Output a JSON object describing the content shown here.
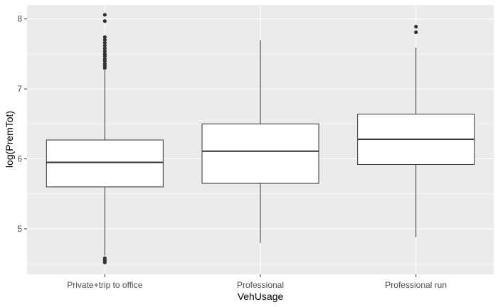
{
  "chart_data": {
    "type": "box",
    "xlabel": "VehUsage",
    "ylabel": "log(PremTot)",
    "ylim": [
      4.35,
      8.2
    ],
    "yticks": [
      5,
      6,
      7,
      8
    ],
    "grid": true,
    "categories": [
      "Private+trip to office",
      "Professional",
      "Professional run"
    ],
    "boxes": [
      {
        "category": "Private+trip to office",
        "q1": 5.6,
        "median": 5.95,
        "q3": 6.27,
        "whisker_low": 4.62,
        "whisker_high": 7.27,
        "outliers": [
          4.52,
          4.55,
          4.58,
          7.3,
          7.33,
          7.36,
          7.4,
          7.43,
          7.47,
          7.5,
          7.54,
          7.58,
          7.62,
          7.66,
          7.7,
          7.74,
          7.97,
          8.06
        ]
      },
      {
        "category": "Professional",
        "q1": 5.65,
        "median": 6.11,
        "q3": 6.5,
        "whisker_low": 4.8,
        "whisker_high": 7.7,
        "outliers": []
      },
      {
        "category": "Professional run",
        "q1": 5.92,
        "median": 6.28,
        "q3": 6.64,
        "whisker_low": 4.88,
        "whisker_high": 7.59,
        "outliers": [
          7.81,
          7.89
        ]
      }
    ]
  },
  "colors": {
    "panel": "#ebebeb",
    "grid": "#ffffff",
    "box_fill": "#ffffff",
    "box_line": "#333333"
  }
}
